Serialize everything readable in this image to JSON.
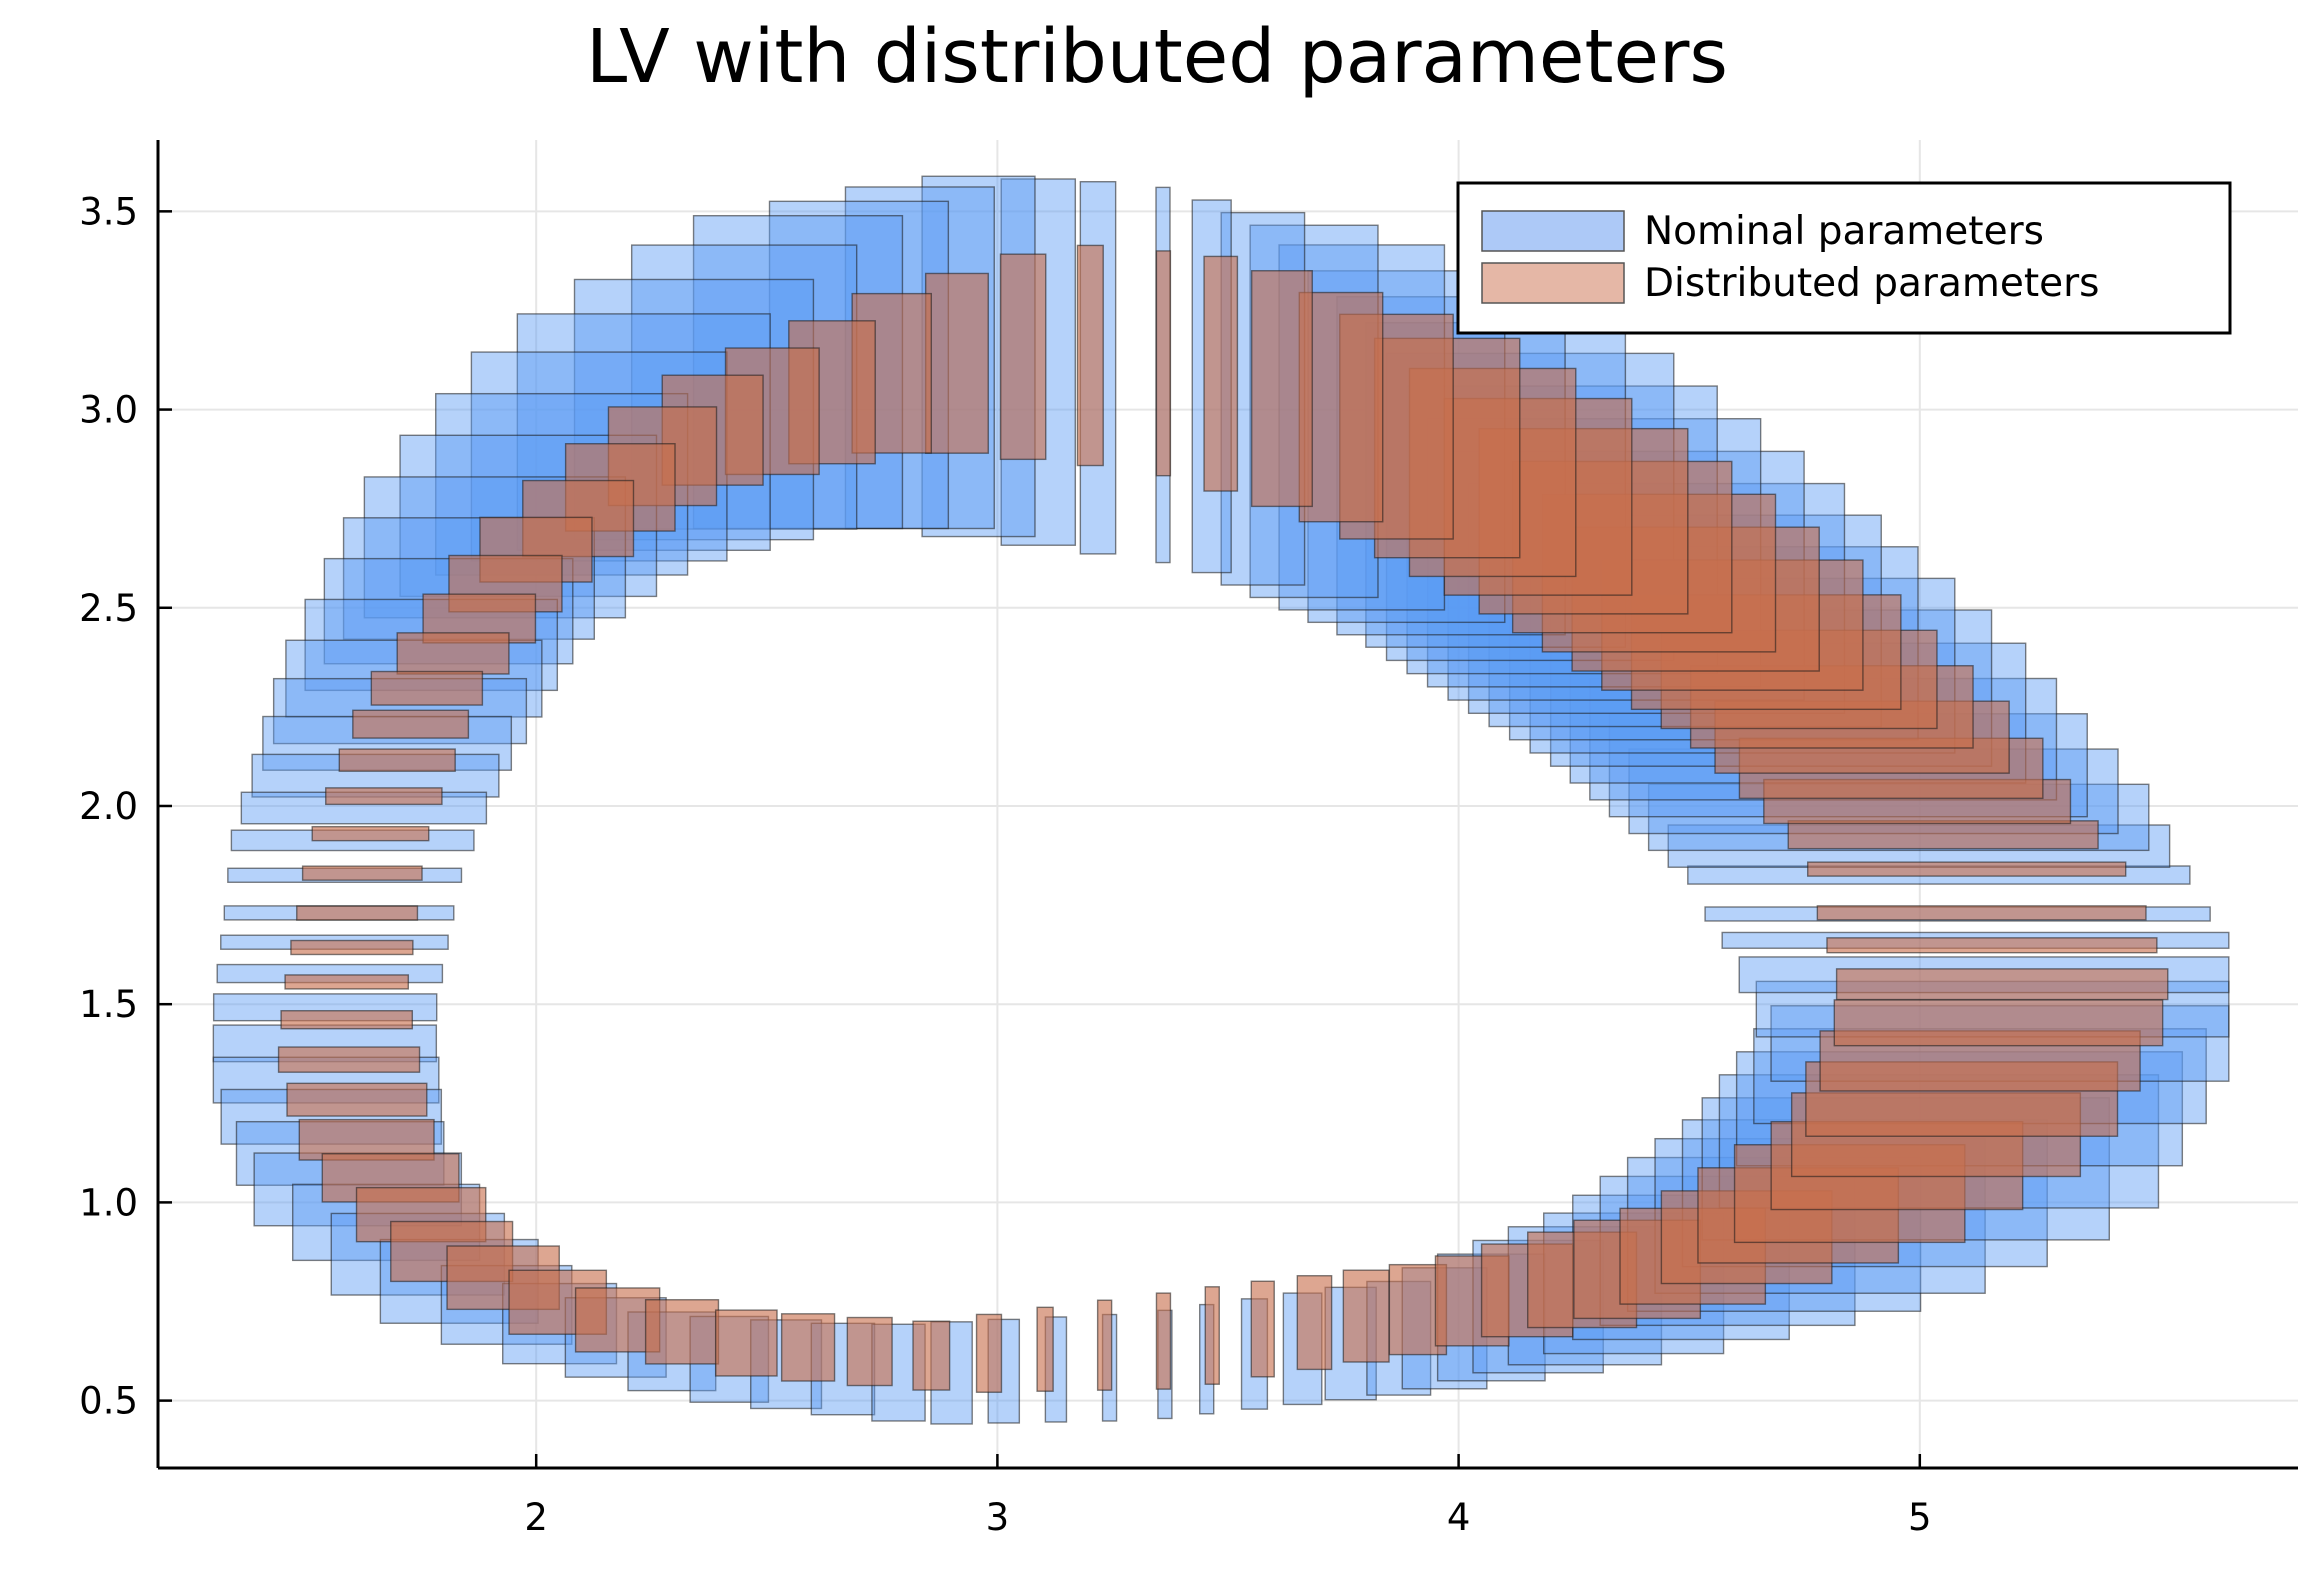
{
  "chart_data": {
    "type": "area",
    "title": "LV with distributed parameters",
    "xlabel": "",
    "ylabel": "",
    "xlim": [
      1.18,
      5.82
    ],
    "ylim": [
      0.33,
      3.68
    ],
    "xticks": [
      2,
      3,
      4,
      5
    ],
    "xtick_labels": [
      "2",
      "3",
      "4",
      "5"
    ],
    "yticks": [
      0.5,
      1.0,
      1.5,
      2.0,
      2.5,
      3.0,
      3.5
    ],
    "ytick_labels": [
      "0.5",
      "1.0",
      "1.5",
      "2.0",
      "2.5",
      "3.0",
      "3.5"
    ],
    "grid": true,
    "legend_position": "top-right",
    "series": [
      {
        "name": "Nominal parameters",
        "color": "#5b9bf5",
        "legend_color": "#adc9f7",
        "outer_boundary": [
          [
            1.3,
            1.45
          ],
          [
            1.34,
            1.95
          ],
          [
            1.45,
            2.4
          ],
          [
            1.62,
            2.82
          ],
          [
            1.9,
            3.2
          ],
          [
            2.3,
            3.48
          ],
          [
            2.8,
            3.59
          ],
          [
            3.3,
            3.57
          ],
          [
            3.9,
            3.45
          ],
          [
            4.4,
            3.2
          ],
          [
            4.8,
            2.85
          ],
          [
            5.2,
            2.45
          ],
          [
            5.5,
            2.05
          ],
          [
            5.67,
            1.65
          ],
          [
            5.67,
            1.3
          ],
          [
            5.5,
            0.95
          ],
          [
            5.1,
            0.75
          ],
          [
            4.5,
            0.6
          ],
          [
            4.0,
            0.52
          ],
          [
            3.3,
            0.45
          ],
          [
            2.8,
            0.44
          ],
          [
            2.3,
            0.5
          ],
          [
            1.9,
            0.6
          ],
          [
            1.6,
            0.72
          ],
          [
            1.38,
            0.95
          ],
          [
            1.3,
            1.2
          ]
        ],
        "inner_boundary": [
          [
            1.78,
            1.5
          ],
          [
            1.83,
            1.8
          ],
          [
            1.95,
            2.1
          ],
          [
            2.1,
            2.4
          ],
          [
            2.35,
            2.6
          ],
          [
            2.7,
            2.7
          ],
          [
            3.0,
            2.7
          ],
          [
            3.4,
            2.6
          ],
          [
            3.8,
            2.4
          ],
          [
            4.2,
            2.1
          ],
          [
            4.5,
            1.8
          ],
          [
            4.68,
            1.5
          ],
          [
            4.5,
            1.22
          ],
          [
            4.2,
            0.98
          ],
          [
            3.8,
            0.8
          ],
          [
            3.3,
            0.72
          ],
          [
            2.8,
            0.69
          ],
          [
            2.4,
            0.72
          ],
          [
            2.1,
            0.82
          ],
          [
            1.9,
            1.0
          ],
          [
            1.8,
            1.2
          ]
        ]
      },
      {
        "name": "Distributed parameters",
        "color": "#c8704d",
        "legend_color": "#e5b7a6",
        "outer_boundary": [
          [
            1.45,
            1.5
          ],
          [
            1.5,
            1.9
          ],
          [
            1.62,
            2.3
          ],
          [
            1.85,
            2.7
          ],
          [
            2.2,
            3.05
          ],
          [
            2.7,
            3.3
          ],
          [
            3.1,
            3.42
          ],
          [
            3.6,
            3.38
          ],
          [
            4.1,
            3.2
          ],
          [
            4.5,
            2.95
          ],
          [
            4.9,
            2.6
          ],
          [
            5.25,
            2.2
          ],
          [
            5.48,
            1.8
          ],
          [
            5.55,
            1.45
          ],
          [
            5.4,
            1.1
          ],
          [
            5.1,
            0.9
          ],
          [
            4.6,
            0.72
          ],
          [
            4.0,
            0.62
          ],
          [
            3.4,
            0.53
          ],
          [
            2.9,
            0.52
          ],
          [
            2.4,
            0.56
          ],
          [
            2.0,
            0.64
          ],
          [
            1.7,
            0.78
          ],
          [
            1.5,
            1.05
          ],
          [
            1.44,
            1.3
          ]
        ],
        "inner_boundary": [
          [
            1.72,
            1.55
          ],
          [
            1.76,
            1.9
          ],
          [
            1.88,
            2.25
          ],
          [
            2.1,
            2.55
          ],
          [
            2.45,
            2.8
          ],
          [
            2.9,
            2.9
          ],
          [
            3.3,
            2.85
          ],
          [
            3.7,
            2.7
          ],
          [
            4.1,
            2.45
          ],
          [
            4.5,
            2.15
          ],
          [
            4.75,
            1.85
          ],
          [
            4.83,
            1.55
          ],
          [
            4.7,
            1.22
          ],
          [
            4.4,
            1.0
          ],
          [
            3.9,
            0.85
          ],
          [
            3.4,
            0.78
          ],
          [
            2.9,
            0.7
          ],
          [
            2.5,
            0.73
          ],
          [
            2.2,
            0.8
          ],
          [
            1.95,
            0.95
          ],
          [
            1.78,
            1.2
          ]
        ]
      }
    ]
  }
}
